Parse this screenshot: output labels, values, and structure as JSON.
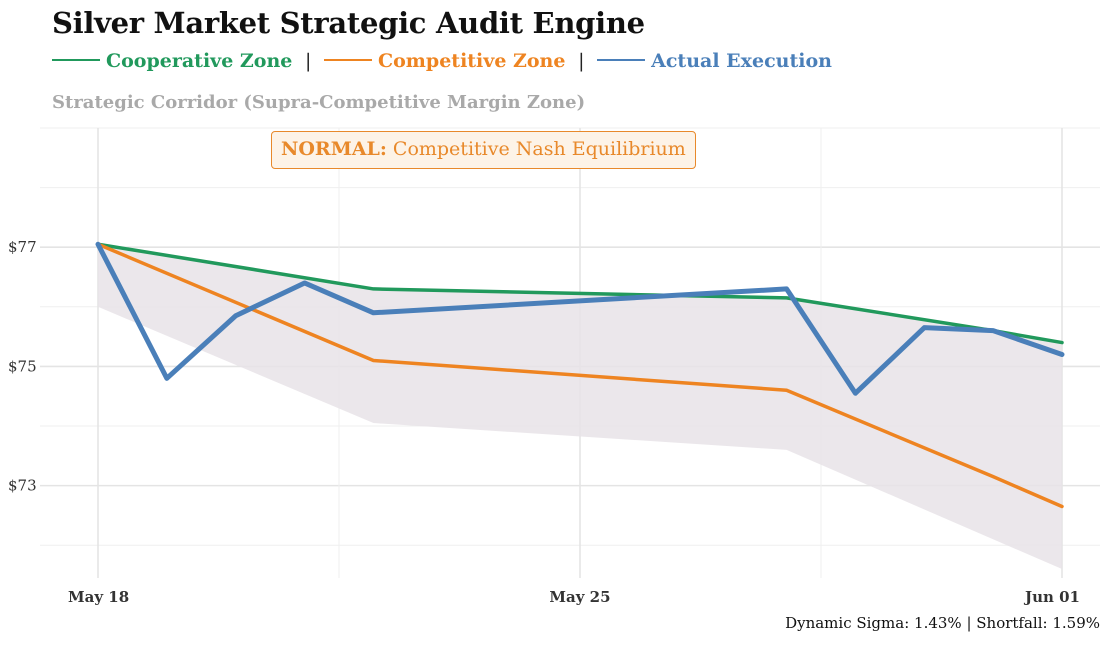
{
  "header": {
    "title": "Silver Market Strategic Audit Engine",
    "legend": [
      {
        "label": "Cooperative Zone",
        "color": "#21995c"
      },
      {
        "label": "Competitive Zone",
        "color": "#ee8421"
      },
      {
        "label": "Actual Execution",
        "color": "#4a7fb9"
      }
    ],
    "separator": "|",
    "subtitle": "Strategic Corridor (Supra-Competitive Margin Zone)"
  },
  "annotation": {
    "status": "NORMAL:",
    "text": "Competitive Nash Equilibrium",
    "color": "#e8892b"
  },
  "footer": {
    "text": "Dynamic Sigma: 1.43% | Shortfall: 1.59%"
  },
  "chart_data": {
    "type": "line",
    "title": "Silver Market Strategic Audit Engine",
    "x_axis": {
      "type": "date",
      "ticks": [
        "May 18",
        "May 25",
        "Jun 01"
      ],
      "range": [
        "May 17",
        "Jun 01"
      ]
    },
    "y_axis": {
      "ticks": [
        "$73",
        "$75",
        "$77"
      ],
      "tick_values": [
        73,
        75,
        77
      ],
      "range": [
        71.45,
        79.0
      ]
    },
    "grid": true,
    "legend_position": "top-left",
    "corridor": {
      "name": "Strategic Corridor (Supra-Competitive Margin Zone)",
      "color": "#e7e3e8",
      "x": [
        "May 18",
        "May 22",
        "May 28",
        "Jun 01"
      ],
      "lower": [
        76.0,
        74.05,
        73.6,
        71.6
      ],
      "upper": [
        77.05,
        76.3,
        76.15,
        75.4
      ]
    },
    "series": [
      {
        "name": "Cooperative Zone",
        "color": "#21995c",
        "x": [
          "May 18",
          "May 22",
          "May 28",
          "May 31",
          "Jun 01"
        ],
        "values": [
          77.05,
          76.3,
          76.15,
          75.6,
          75.4
        ]
      },
      {
        "name": "Competitive Zone",
        "color": "#ee8421",
        "x": [
          "May 18",
          "May 22",
          "May 28",
          "May 31",
          "Jun 01"
        ],
        "values": [
          77.05,
          75.1,
          74.6,
          73.15,
          72.65
        ]
      },
      {
        "name": "Actual Execution",
        "color": "#4a7fb9",
        "x": [
          "May 18",
          "May 19",
          "May 20",
          "May 21",
          "May 22",
          "May 28",
          "May 29",
          "May 30",
          "May 31",
          "Jun 01"
        ],
        "values": [
          77.05,
          74.8,
          75.85,
          76.4,
          75.9,
          76.3,
          74.55,
          75.65,
          75.6,
          75.2
        ]
      }
    ]
  }
}
